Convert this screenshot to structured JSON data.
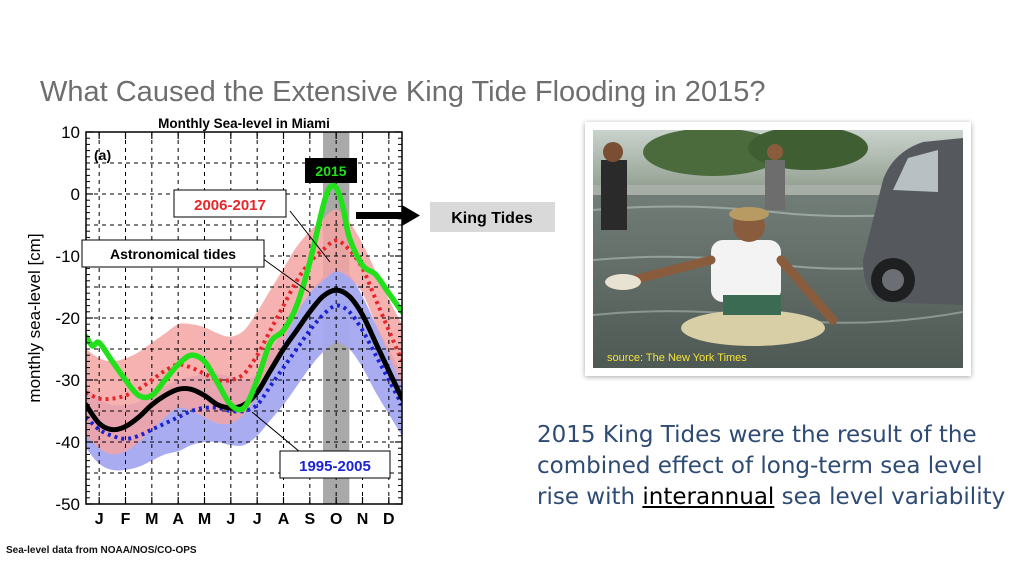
{
  "slide": {
    "title": "What Caused the Extensive King Tide Flooding in 2015?",
    "photo_source": "source: The New York Times",
    "conclusion_part1": "2015 King Tides were the result of the combined effect of long-term sea level rise with ",
    "conclusion_keyword": "interannual",
    "conclusion_part2": " sea level variability",
    "footer_source": "Sea-level data from NOAA/NOS/CO-OPS"
  },
  "chart_data": {
    "type": "line",
    "title": "Monthly Sea-level in Miami",
    "panel_label": "(a)",
    "ylabel": "monthly sea-level [cm]",
    "xlabel": "",
    "ylim": [
      -50,
      10
    ],
    "yticks": [
      10,
      0,
      -10,
      -20,
      -30,
      -40,
      -50
    ],
    "ytick_labels": [
      "10",
      "0",
      "-10",
      "-20",
      "-30",
      "-40",
      "-50"
    ],
    "xlim": [
      0.5,
      12.5
    ],
    "categories": [
      "J",
      "F",
      "M",
      "A",
      "M",
      "J",
      "J",
      "A",
      "S",
      "O",
      "N",
      "D"
    ],
    "grid": true,
    "highlight": {
      "label": "2015",
      "x_from": 9.5,
      "x_to": 10.5,
      "color": "#a9a9a9"
    },
    "series": [
      {
        "name": "2006-2017",
        "style": "dotted",
        "color": "#e8262a",
        "band_color": "#f5a3a3",
        "x": [
          0.5,
          1,
          1.5,
          2,
          2.5,
          3,
          3.5,
          4,
          4.5,
          5,
          5.5,
          6,
          6.5,
          7,
          7.5,
          8,
          8.5,
          9,
          9.5,
          10,
          10.5,
          11,
          11.5,
          12,
          12.5
        ],
        "values": [
          -32,
          -33,
          -33,
          -32.5,
          -31.5,
          -30,
          -28.5,
          -27.5,
          -28,
          -29,
          -30,
          -30,
          -29,
          -26,
          -22,
          -18,
          -14,
          -11,
          -9,
          -7.5,
          -9,
          -12,
          -17,
          -22,
          -27
        ],
        "band_upper": [
          -25,
          -26.5,
          -27,
          -26.5,
          -25.5,
          -24,
          -22.5,
          -21,
          -21,
          -21.5,
          -22.5,
          -23,
          -22,
          -19,
          -15.5,
          -12,
          -8.5,
          -6,
          -4,
          -2.5,
          -4.5,
          -8,
          -12.5,
          -17,
          -21
        ],
        "band_lower": [
          -39,
          -41,
          -42,
          -41.5,
          -40,
          -38,
          -36,
          -34.5,
          -35,
          -36,
          -37,
          -37,
          -35.5,
          -32.5,
          -28.5,
          -24,
          -19.5,
          -16,
          -14,
          -12.5,
          -13.5,
          -16,
          -21,
          -26,
          -31
        ]
      },
      {
        "name": "1995-2005",
        "style": "dotted",
        "color": "#1c23d6",
        "band_color": "#a4a8f0",
        "x": [
          0.5,
          1,
          1.5,
          2,
          2.5,
          3,
          3.5,
          4,
          4.5,
          5,
          5.5,
          6,
          6.5,
          7,
          7.5,
          8,
          8.5,
          9,
          9.5,
          10,
          10.5,
          11,
          11.5,
          12,
          12.5
        ],
        "values": [
          -36,
          -38,
          -39,
          -39.5,
          -39,
          -38,
          -37,
          -36,
          -35,
          -34.5,
          -34.5,
          -35,
          -35,
          -34,
          -31,
          -28,
          -25,
          -22,
          -19.5,
          -18,
          -19,
          -22,
          -26,
          -30,
          -34
        ],
        "band_upper": [
          -31,
          -33,
          -34,
          -34,
          -33.5,
          -32,
          -31,
          -30,
          -29.5,
          -29,
          -29,
          -29.5,
          -30,
          -29,
          -25.5,
          -22,
          -19,
          -16,
          -13.5,
          -12,
          -13,
          -16.5,
          -21,
          -25,
          -29
        ],
        "band_lower": [
          -41,
          -43.5,
          -44.5,
          -44.5,
          -44,
          -43,
          -42,
          -41.5,
          -40.5,
          -40,
          -40,
          -40.5,
          -40.5,
          -39,
          -36.5,
          -34,
          -31,
          -28,
          -25.5,
          -24,
          -25,
          -28,
          -32,
          -35.5,
          -39
        ]
      },
      {
        "name": "Astronomical tides",
        "style": "solid",
        "color": "#000000",
        "x": [
          0.5,
          1,
          1.5,
          2,
          2.5,
          3,
          3.5,
          4,
          4.5,
          5,
          5.5,
          6,
          6.5,
          7,
          7.5,
          8,
          8.5,
          9,
          9.5,
          10,
          10.5,
          11,
          11.5,
          12,
          12.5
        ],
        "values": [
          -34,
          -37,
          -38,
          -37.5,
          -36,
          -34,
          -32.5,
          -31.5,
          -31.5,
          -32.5,
          -34,
          -34.5,
          -34,
          -32,
          -28.5,
          -25,
          -22,
          -19,
          -16.5,
          -15.5,
          -16.5,
          -19.5,
          -24,
          -28.5,
          -33
        ]
      },
      {
        "name": "2015",
        "style": "solid",
        "color": "#22e01b",
        "x": [
          0.5,
          0.75,
          1,
          1.5,
          2,
          2.5,
          3,
          3.5,
          4,
          4.5,
          5,
          5.5,
          6,
          6.5,
          7,
          7.5,
          8,
          8.5,
          9,
          9.5,
          9.75,
          10,
          10.25,
          10.5,
          11,
          11.5,
          12,
          12.5
        ],
        "values": [
          -23,
          -24.5,
          -24,
          -27,
          -30,
          -32.5,
          -32.5,
          -30,
          -27.5,
          -26,
          -27,
          -30.5,
          -34,
          -34.5,
          -30,
          -24,
          -22,
          -18,
          -11,
          -2,
          1,
          1,
          -2,
          -7,
          -11.5,
          -13,
          -16,
          -19
        ]
      }
    ],
    "annotations": [
      {
        "text": "2015",
        "style": "black box, green text"
      },
      {
        "text": "2006-2017",
        "style": "red text, white box"
      },
      {
        "text": "Astronomical tides",
        "style": "black text, white box"
      },
      {
        "text": "1995-2005",
        "style": "blue text, white box"
      },
      {
        "text": "King Tides",
        "style": "grey box with arrow pointing to 2015 peak"
      }
    ]
  },
  "colors": {
    "title": "#6e6e6e",
    "conclusion_text": "#2e4b73",
    "king_tides_box": "#d9d9d9"
  }
}
